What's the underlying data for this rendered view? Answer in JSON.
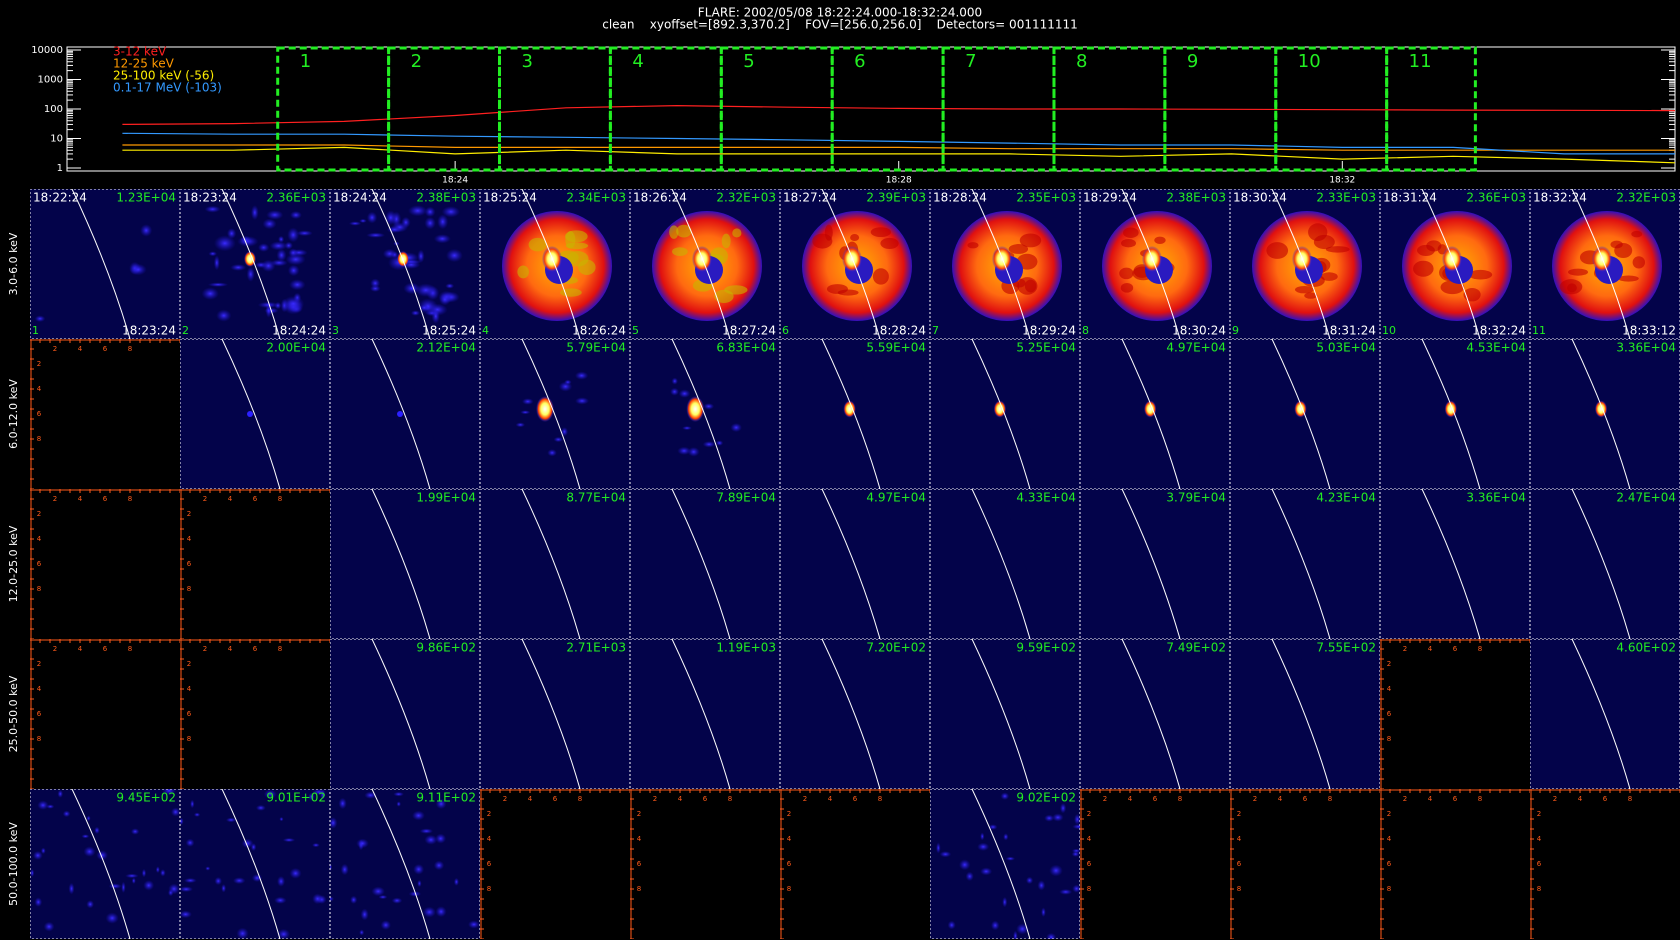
{
  "chart_data": {
    "type": "line",
    "title": "FLARE: 2002/05/08 18:22:24.000-18:32:24.000",
    "subtitle": "clean    xyoffset=[892.3,370.2]    FOV=[256.0,256.0]    Detectors= 001111111",
    "log_y": true,
    "ylim": [
      1,
      10000
    ],
    "yticks": [
      1,
      10,
      100,
      1000,
      10000
    ],
    "xlim": [
      "18:20:30",
      "18:35:00"
    ],
    "xticks": [
      "18:24",
      "18:28",
      "18:32"
    ],
    "legend": "upper left",
    "x": [
      "18:21",
      "18:22",
      "18:23",
      "18:24",
      "18:25",
      "18:26",
      "18:27",
      "18:28",
      "18:29",
      "18:30",
      "18:31",
      "18:32",
      "18:33",
      "18:34",
      "18:35"
    ],
    "series": [
      {
        "name": "3-12 keV",
        "color": "#ff2020",
        "values": [
          30,
          32,
          38,
          60,
          110,
          130,
          115,
          105,
          100,
          100,
          98,
          95,
          92,
          90,
          88
        ]
      },
      {
        "name": "12-25 keV",
        "color": "#ff9900",
        "values": [
          6,
          6,
          6,
          5,
          5,
          5,
          5,
          5,
          4.5,
          4.5,
          4.5,
          4,
          4,
          4,
          4
        ]
      },
      {
        "name": "25-100 keV (-56)",
        "color": "#ffee00",
        "values": [
          4,
          4,
          5,
          3,
          4,
          3,
          3,
          3,
          3,
          2.5,
          3,
          2,
          2.5,
          2,
          1.5
        ]
      },
      {
        "name": "0.1-17 MeV (-103)",
        "color": "#3399ff",
        "values": [
          15,
          14,
          14,
          12,
          11,
          10,
          9,
          8,
          7,
          6,
          6,
          5,
          5,
          3,
          3
        ]
      }
    ],
    "intervals": [
      {
        "label": "1",
        "start": "18:22:24",
        "end": "18:23:24"
      },
      {
        "label": "2",
        "start": "18:23:24",
        "end": "18:24:24"
      },
      {
        "label": "3",
        "start": "18:24:24",
        "end": "18:25:24"
      },
      {
        "label": "4",
        "start": "18:25:24",
        "end": "18:26:24"
      },
      {
        "label": "5",
        "start": "18:26:24",
        "end": "18:27:24"
      },
      {
        "label": "6",
        "start": "18:27:24",
        "end": "18:28:24"
      },
      {
        "label": "7",
        "start": "18:28:24",
        "end": "18:29:24"
      },
      {
        "label": "8",
        "start": "18:29:24",
        "end": "18:30:24"
      },
      {
        "label": "9",
        "start": "18:30:24",
        "end": "18:31:24"
      },
      {
        "label": "10",
        "start": "18:31:24",
        "end": "18:32:24"
      },
      {
        "label": "11",
        "start": "18:32:24",
        "end": "18:33:12"
      }
    ]
  },
  "image_grid": {
    "energy_bands": [
      "3.0-6.0 keV",
      "6.0-12.0 keV",
      "12.0-25.0 keV",
      "25.0-50.0 keV",
      "50.0-100.0 keV"
    ],
    "start_times": [
      "18:22:24",
      "18:23:24",
      "18:24:24",
      "18:25:24",
      "18:26:24",
      "18:27:24",
      "18:28:24",
      "18:29:24",
      "18:30:24",
      "18:31:24",
      "18:32:24"
    ],
    "end_times": [
      "18:23:24",
      "18:24:24",
      "18:25:24",
      "18:26:24",
      "18:27:24",
      "18:28:24",
      "18:29:24",
      "18:30:24",
      "18:31:24",
      "18:32:24",
      "18:33:12"
    ],
    "indices": [
      "1",
      "2",
      "3",
      "4",
      "5",
      "6",
      "7",
      "8",
      "9",
      "10",
      "11"
    ],
    "empty_axis_ticks": [
      "2",
      "4",
      "6",
      "8"
    ],
    "peaks": [
      [
        "1.23E+04",
        "2.36E+03",
        "2.38E+03",
        "2.34E+03",
        "2.32E+03",
        "2.39E+03",
        "2.35E+03",
        "2.38E+03",
        "2.33E+03",
        "2.36E+03",
        "2.32E+03"
      ],
      [
        null,
        "2.00E+04",
        "2.12E+04",
        "5.79E+04",
        "6.83E+04",
        "5.59E+04",
        "5.25E+04",
        "4.97E+04",
        "5.03E+04",
        "4.53E+04",
        "3.36E+04"
      ],
      [
        null,
        null,
        "1.99E+04",
        "8.77E+04",
        "7.89E+04",
        "4.97E+04",
        "4.33E+04",
        "3.79E+04",
        "4.23E+04",
        "3.36E+04",
        "2.47E+04"
      ],
      [
        null,
        null,
        "9.86E+02",
        "2.71E+03",
        "1.19E+03",
        "7.20E+02",
        "9.59E+02",
        "7.49E+02",
        "7.55E+02",
        null,
        "4.60E+02"
      ],
      [
        "9.45E+02",
        "9.01E+02",
        "9.11E+02",
        null,
        null,
        null,
        "9.02E+02",
        null,
        null,
        null,
        null
      ]
    ]
  }
}
